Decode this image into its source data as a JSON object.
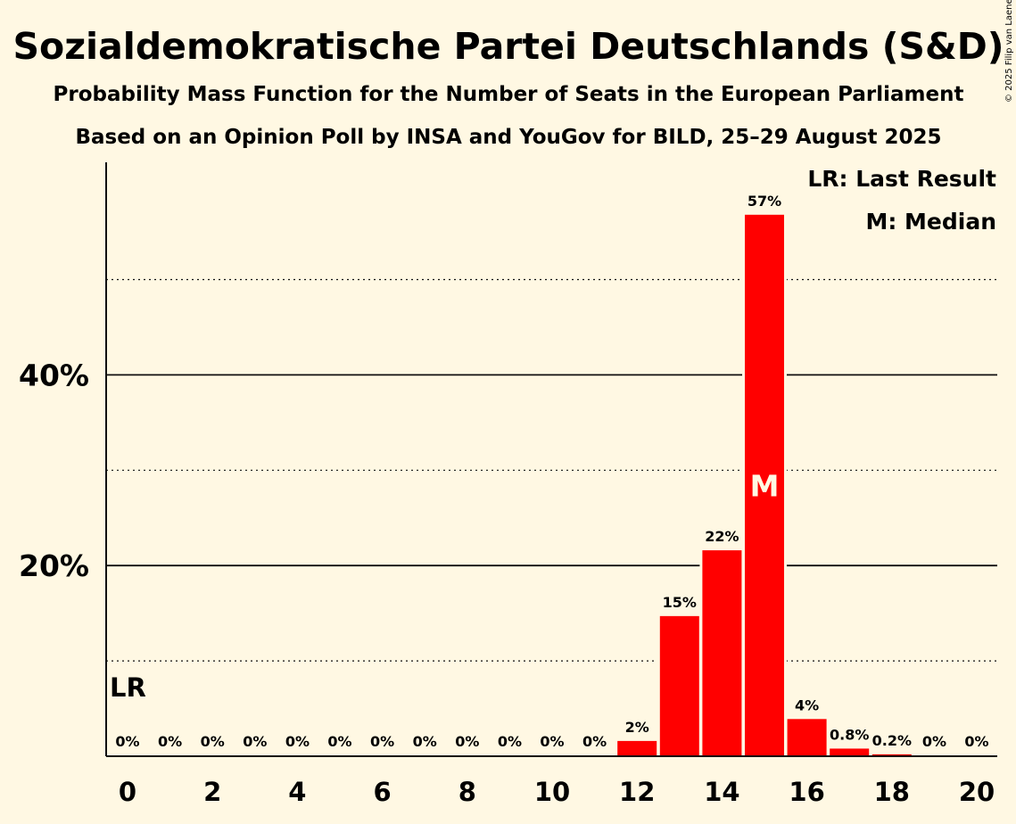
{
  "chart_data": {
    "type": "bar",
    "title": "Sozialdemokratische Partei Deutschlands (S&D)",
    "subtitle": "Probability Mass Function for the Number of Seats in the European Parliament",
    "subtitle2": "Based on an Opinion Poll by INSA and YouGov for BILD, 25–29 August 2025",
    "copyright": "© 2025 Filip van Laenen",
    "x": [
      0,
      1,
      2,
      3,
      4,
      5,
      6,
      7,
      8,
      9,
      10,
      11,
      12,
      13,
      14,
      15,
      16,
      17,
      18,
      19,
      20
    ],
    "values": [
      0,
      0,
      0,
      0,
      0,
      0,
      0,
      0,
      0,
      0,
      0,
      0,
      1.6,
      14.7,
      21.6,
      56.8,
      3.9,
      0.8,
      0.2,
      0,
      0
    ],
    "data_labels": [
      "0%",
      "0%",
      "0%",
      "0%",
      "0%",
      "0%",
      "0%",
      "0%",
      "0%",
      "0%",
      "0%",
      "0%",
      "2%",
      "15%",
      "22%",
      "57%",
      "4%",
      "0.8%",
      "0.2%",
      "0%",
      "0%"
    ],
    "xticks": [
      0,
      2,
      4,
      6,
      8,
      10,
      12,
      14,
      16,
      18,
      20
    ],
    "yticks": [
      {
        "value": 20,
        "label": "20%"
      },
      {
        "value": 40,
        "label": "40%"
      }
    ],
    "ylim": [
      0,
      62
    ],
    "grid": {
      "solid": [
        20,
        40
      ],
      "dotted": [
        10,
        30,
        50
      ]
    },
    "bar_color": "#FF0000",
    "last_result": {
      "x": 0,
      "marker": "LR"
    },
    "median": {
      "x": 15,
      "marker": "M"
    },
    "legend": {
      "position": "top-right",
      "entries": [
        "LR: Last Result",
        "M: Median"
      ]
    }
  }
}
